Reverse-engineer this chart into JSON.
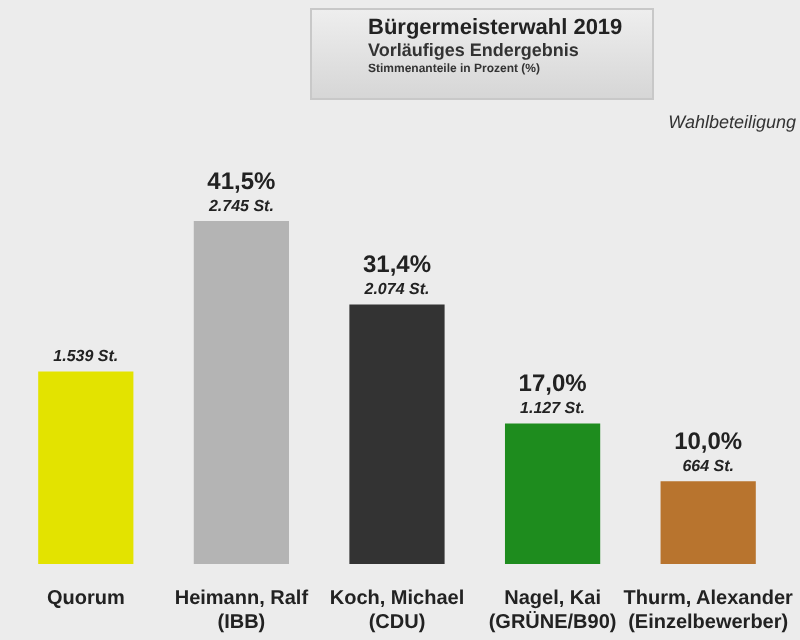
{
  "chart_data": {
    "type": "bar",
    "title": "Bürgermeisterwahl 2019",
    "subtitle": "Vorläufiges Endergebnis",
    "categories": [
      "Quorum",
      "Heimann, Ralf\n(IBB)",
      "Koch, Michael\n(CDU)",
      "Nagel, Kai\n(GRÜNE/B90)",
      "Thurm, Alexander\n(Einzelbewerber)"
    ],
    "values": [
      23.3,
      41.5,
      31.4,
      17.0,
      10.0
    ],
    "colors": [
      "#e3e300",
      "#b4b4b4",
      "#333333",
      "#1e8c1e",
      "#b8742e"
    ],
    "value_labels": [
      null,
      "41,5%",
      "31,4%",
      "17,0%",
      "10,0%"
    ],
    "tick_labels": "x",
    "grid": false,
    "legend": false,
    "annotations": [
      "Stimmenanteile in Prozent (%)",
      "Wahlbeteiligung",
      {
        "text": "1.539 St.",
        "x": "Quorum",
        "y": 23.3
      },
      {
        "text": "2.745 St.",
        "x": "Heimann, Ralf\n(IBB)",
        "y": 41.5
      },
      {
        "text": "2.074 St.",
        "x": "Koch, Michael\n(CDU)",
        "y": 31.4
      },
      {
        "text": "1.127 St.",
        "x": "Nagel, Kai\n(GRÜNE/B90)",
        "y": 17.0
      },
      {
        "text": "664 St.",
        "x": "Thurm, Alexander\n(Einzelbewerber)",
        "y": 10.0
      }
    ]
  }
}
